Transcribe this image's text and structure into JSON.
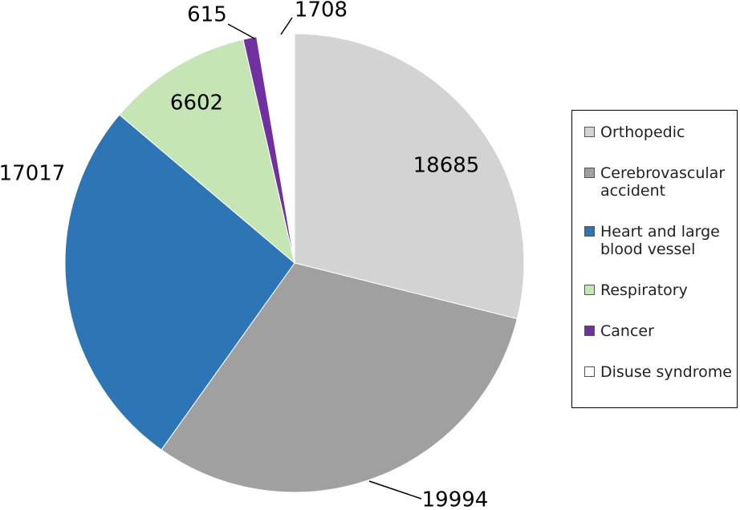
{
  "chart_data": {
    "type": "pie",
    "categories": [
      "Orthopedic",
      "Cerebrovascular accident",
      "Heart and large blood vessel",
      "Respiratory",
      "Cancer",
      "Disuse syndrome"
    ],
    "values": [
      18685,
      19994,
      17017,
      6602,
      615,
      1708
    ],
    "colors": [
      "#d3d3d3",
      "#a0a0a0",
      "#2e75b6",
      "#c5e6b4",
      "#7030a0",
      "#ffffff"
    ]
  }
}
